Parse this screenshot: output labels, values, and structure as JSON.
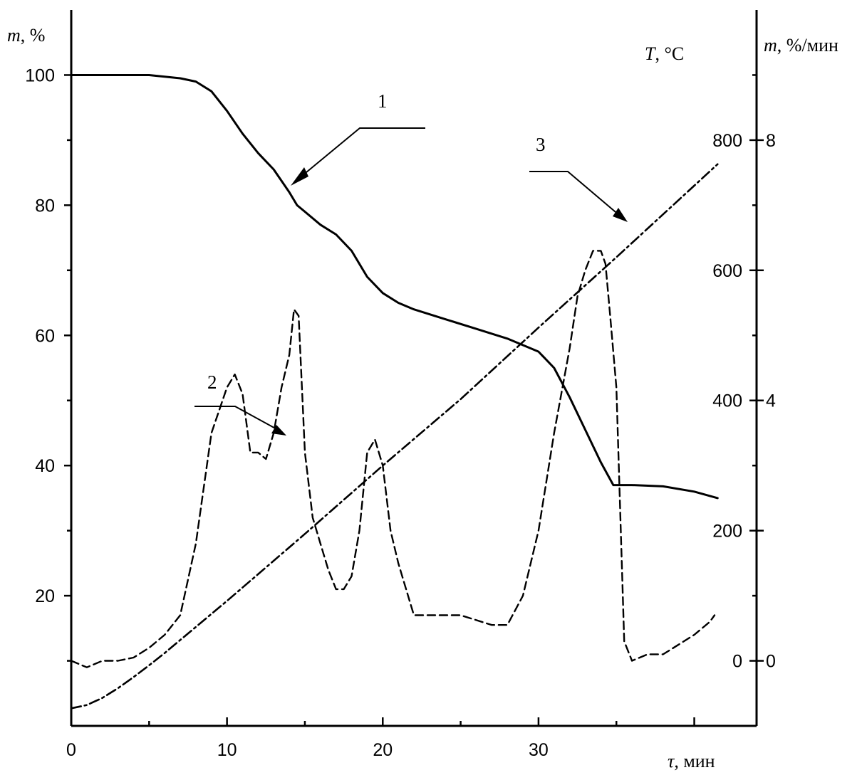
{
  "chart_data": {
    "type": "line",
    "x_axis": {
      "title_var": "τ",
      "title_unit": ", мин",
      "range": [
        0,
        44
      ],
      "ticks": [
        0,
        10,
        20,
        30
      ]
    },
    "y_axis_left": {
      "title_var": "m",
      "title_unit": ", %",
      "range": [
        0,
        110
      ],
      "ticks": [
        20,
        40,
        60,
        80,
        100
      ]
    },
    "y_axis_right_outer": {
      "title_var": "m",
      "title_unit": ", %/мин",
      "range": [
        -1,
        10
      ],
      "ticks": [
        0,
        4,
        8
      ]
    },
    "y_axis_right_inner": {
      "title_var": "T",
      "title_unit": ", °C",
      "range": [
        -100,
        1000
      ],
      "ticks": [
        0,
        200,
        400,
        600,
        800
      ]
    },
    "series": [
      {
        "name": "1",
        "axis": "y_axis_left",
        "style": "solid",
        "x": [
          0,
          5,
          7,
          8,
          9,
          10,
          11,
          12,
          13,
          14,
          14.5,
          15,
          16,
          17,
          18,
          19,
          20,
          21,
          22,
          24,
          26,
          28,
          30,
          31,
          32,
          33,
          34,
          34.8,
          36,
          38,
          40,
          41.5
        ],
        "y": [
          100,
          100,
          99.5,
          99,
          97.5,
          94.5,
          91,
          88,
          85.5,
          82,
          80,
          79,
          77,
          75.5,
          73,
          69,
          66.5,
          65,
          64,
          62.5,
          61,
          59.5,
          57.5,
          55,
          50.5,
          45.5,
          40.5,
          37,
          37,
          36.8,
          36,
          35
        ]
      },
      {
        "name": "2",
        "axis": "y_axis_right_outer",
        "style": "dashed",
        "x": [
          0,
          1,
          2,
          3,
          4,
          5,
          6,
          7,
          8,
          9,
          10,
          10.5,
          11,
          11.5,
          12,
          12.5,
          13,
          13.5,
          14,
          14.3,
          14.6,
          15,
          15.5,
          16,
          16.5,
          17,
          17.5,
          18,
          18.5,
          19,
          19.5,
          20,
          20.5,
          21,
          22,
          23,
          25,
          27,
          28,
          29,
          30,
          31,
          32,
          32.5,
          33,
          33.5,
          34,
          34.3,
          34.6,
          35,
          35.5,
          36,
          37,
          38,
          39,
          40,
          41,
          41.3
        ],
        "y": [
          0,
          -0.1,
          0,
          0,
          0.05,
          0.2,
          0.4,
          0.7,
          1.8,
          3.5,
          4.2,
          4.4,
          4.1,
          3.2,
          3.2,
          3.1,
          3.5,
          4.2,
          4.7,
          5.4,
          5.3,
          3.2,
          2.2,
          1.8,
          1.4,
          1.1,
          1.1,
          1.3,
          2.0,
          3.2,
          3.4,
          3.0,
          2.0,
          1.5,
          0.7,
          0.7,
          0.7,
          0.55,
          0.55,
          1.0,
          2.0,
          3.5,
          4.8,
          5.6,
          6.0,
          6.3,
          6.3,
          6.1,
          5.3,
          4.2,
          0.3,
          0.0,
          0.1,
          0.1,
          0.25,
          0.4,
          0.6,
          0.7
        ]
      },
      {
        "name": "3",
        "axis": "y_axis_right_inner",
        "style": "dashdot",
        "x": [
          0,
          1,
          2,
          3,
          4,
          5,
          6,
          7,
          8,
          10,
          15,
          20,
          25,
          30,
          35,
          41.5
        ],
        "y": [
          -73,
          -68,
          -57,
          -42,
          -25,
          -7,
          12,
          32,
          52,
          92,
          195,
          300,
          402,
          512,
          620,
          763
        ]
      }
    ]
  }
}
